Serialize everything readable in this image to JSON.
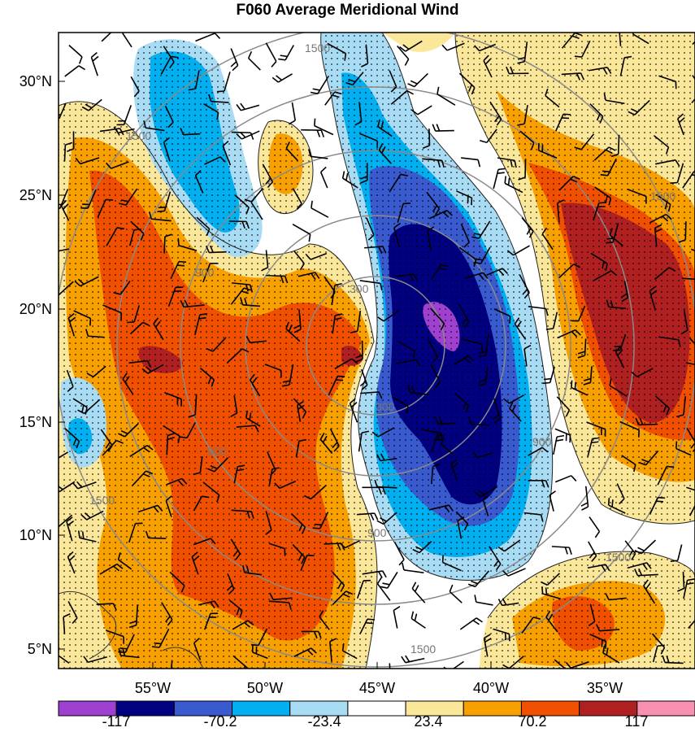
{
  "title": "F060 Average Meridional Wind",
  "map": {
    "lat_labels": [
      "30°N",
      "25°N",
      "20°N",
      "15°N",
      "10°N",
      "5°N"
    ],
    "lon_labels": [
      "55°W",
      "50°W",
      "45°W",
      "40°W",
      "35°W"
    ],
    "ring_labels": [
      "300",
      "300",
      "900",
      "900",
      "900",
      "900",
      "1500",
      "1500",
      "1500",
      "1500",
      "1500",
      "1500"
    ]
  },
  "colorbar": {
    "colors": [
      "#a040d0",
      "#000080",
      "#3a5ad0",
      "#00b0f0",
      "#a8dcf4",
      "#ffffff",
      "#fbe79a",
      "#f8a000",
      "#f05000",
      "#b02020",
      "#f890b0"
    ],
    "labels": [
      "-117",
      "-70.2",
      "-23.4",
      "23.4",
      "70.2",
      "117"
    ]
  }
}
